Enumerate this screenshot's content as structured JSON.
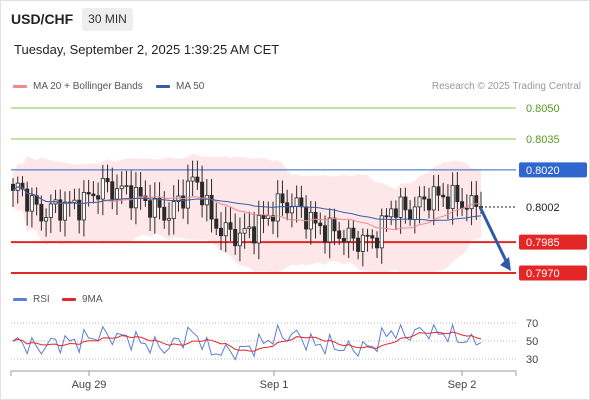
{
  "header": {
    "symbol": "USD/CHF",
    "timeframe": "30 MIN",
    "datetime": "Tuesday, September 2, 2025 1:39:25 AM CET"
  },
  "legend": {
    "ma20": "MA 20 + Bollinger Bands",
    "ma50": "MA 50",
    "credit": "Research © 2025 Trading Central"
  },
  "rsi_legend": {
    "rsi": "RSI",
    "ma9": "9MA"
  },
  "colors": {
    "up": "#2a2a2a",
    "down": "#2a2a2a",
    "ma20": "#f28a8a",
    "ma50": "#3b5ba5",
    "band_fill": "#fde3e5",
    "resistance": "#8bc34a",
    "pivot": "#2f66d0",
    "support": "#e32626",
    "arrow": "#2f5aa8",
    "rsi": "#5b7fd4",
    "rsi_ma": "#e32626"
  },
  "chart_data": [
    {
      "type": "candlestick",
      "symbol": "USD/CHF",
      "interval": "30 MIN",
      "ylim": [
        0.7963,
        0.8059
      ],
      "x_ticks": [
        "Aug 29",
        "Sep 1",
        "Sep 2"
      ],
      "levels": [
        {
          "value": 0.805,
          "label": "0.8050",
          "kind": "resistance"
        },
        {
          "value": 0.8035,
          "label": "0.8035",
          "kind": "resistance"
        },
        {
          "value": 0.802,
          "label": "0.8020",
          "kind": "pivot"
        },
        {
          "value": 0.8002,
          "label": "0.8002",
          "kind": "current"
        },
        {
          "value": 0.7985,
          "label": "0.7985",
          "kind": "support"
        },
        {
          "value": 0.797,
          "label": "0.7970",
          "kind": "support"
        }
      ],
      "forecast": {
        "from": 0.8002,
        "to": 0.797
      }
    },
    {
      "type": "line",
      "name": "RSI",
      "ylim": [
        20,
        80
      ],
      "y_ticks": [
        70,
        50,
        30
      ]
    }
  ]
}
